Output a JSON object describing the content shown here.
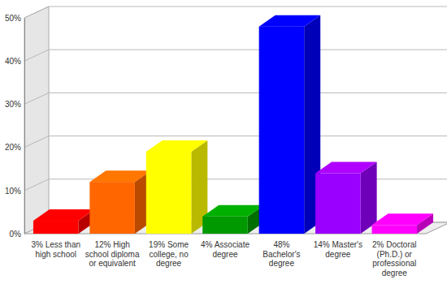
{
  "chart_data": {
    "type": "bar",
    "categories": [
      "3% Less than high school",
      "12% High school diploma or equivalent",
      "19% Some college, no degree",
      "4% Associate degree",
      "48% Bachelor's degree",
      "14% Master's degree",
      "2% Doctoral (Ph.D.) or professional degree"
    ],
    "values": [
      3,
      12,
      19,
      4,
      48,
      14,
      2
    ],
    "colors": [
      "#ff0000",
      "#ff6600",
      "#ffff00",
      "#009900",
      "#0000ff",
      "#9900ff",
      "#ff00ff"
    ],
    "ylim": [
      0,
      50
    ],
    "yticks": [
      {
        "value": 0,
        "label": "0%"
      },
      {
        "value": 10,
        "label": "10%"
      },
      {
        "value": 20,
        "label": "20%"
      },
      {
        "value": 30,
        "label": "30%"
      },
      {
        "value": 40,
        "label": "40%"
      },
      {
        "value": 50,
        "label": "50%"
      }
    ],
    "grid": true
  }
}
